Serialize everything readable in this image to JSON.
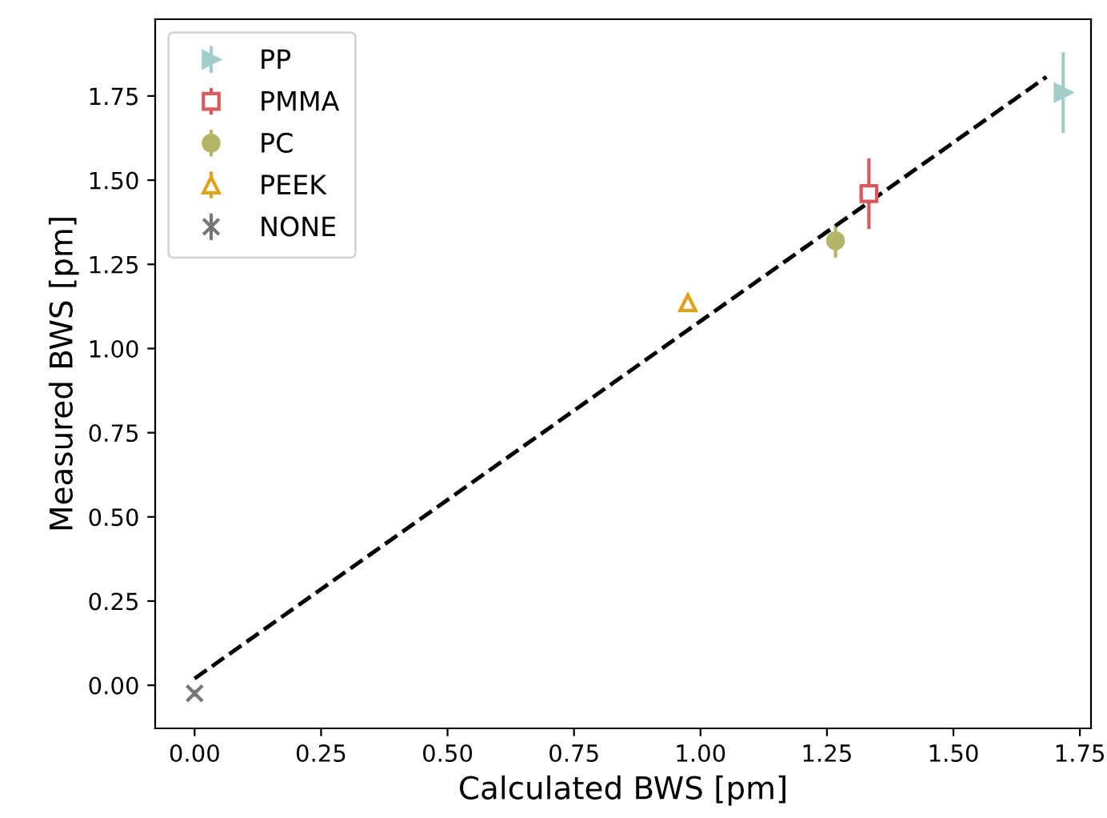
{
  "chart_data": {
    "type": "scatter",
    "xlabel": "Calculated BWS [pm]",
    "ylabel": "Measured BWS [pm]",
    "xlim": [
      -0.078,
      1.772
    ],
    "ylim": [
      -0.128,
      1.978
    ],
    "xticks": [
      {
        "value": 0,
        "label": "0.00"
      },
      {
        "value": 0.25,
        "label": "0.25"
      },
      {
        "value": 0.5,
        "label": "0.50"
      },
      {
        "value": 0.75,
        "label": "0.75"
      },
      {
        "value": 1,
        "label": "1.00"
      },
      {
        "value": 1.25,
        "label": "1.25"
      },
      {
        "value": 1.5,
        "label": "1.50"
      },
      {
        "value": 1.75,
        "label": "1.75"
      }
    ],
    "yticks": [
      {
        "value": 0,
        "label": "0.00"
      },
      {
        "value": 0.25,
        "label": "0.25"
      },
      {
        "value": 0.5,
        "label": "0.50"
      },
      {
        "value": 0.75,
        "label": "0.75"
      },
      {
        "value": 1,
        "label": "1.00"
      },
      {
        "value": 1.25,
        "label": "1.25"
      },
      {
        "value": 1.5,
        "label": "1.50"
      },
      {
        "value": 1.75,
        "label": "1.75"
      }
    ],
    "grid": false,
    "legend": "top left",
    "series": [
      {
        "name": "PP",
        "color": "#a3cccc",
        "x": [
          1.717
        ],
        "values": [
          1.76
        ],
        "errors": [
          0.12
        ],
        "marker": "triangle_right"
      },
      {
        "name": "PMMA",
        "color": "#d9595c",
        "x": [
          1.333
        ],
        "values": [
          1.46
        ],
        "errors": [
          0.105
        ],
        "marker": "square"
      },
      {
        "name": "PC",
        "color": "#b5b56a",
        "x": [
          1.267
        ],
        "values": [
          1.32
        ],
        "errors": [
          0.05
        ],
        "marker": "circle"
      },
      {
        "name": "PEEK",
        "color": "#e0a21c",
        "x": [
          0.975
        ],
        "values": [
          1.136
        ],
        "errors": [
          0.005
        ],
        "marker": "triangle"
      },
      {
        "name": "NONE",
        "color": "#777777",
        "x": [
          0
        ],
        "values": [
          -0.024
        ],
        "errors": [
          0.01
        ],
        "marker": "cross"
      },
      {
        "type": "line",
        "color": "#000000",
        "x": [
          0,
          1.684
        ],
        "values": [
          0.02,
          1.807
        ],
        "line_style": "dashed",
        "marker": "none"
      }
    ]
  }
}
